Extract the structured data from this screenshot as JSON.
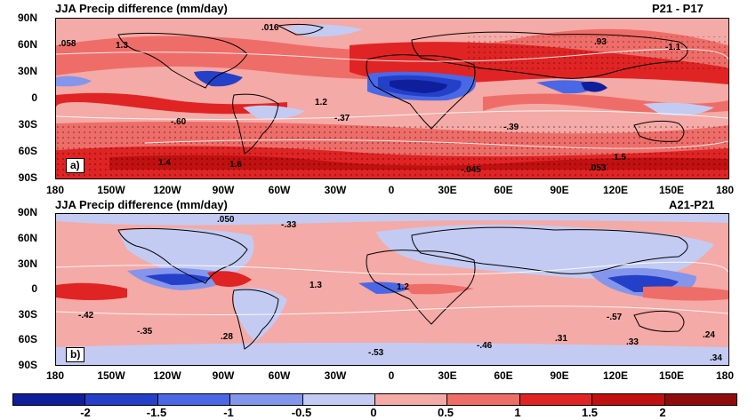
{
  "panels": [
    {
      "title": "JJA Precip difference (mm/day)",
      "right_title": "P21 - P17",
      "label": "a)",
      "annotations": [
        ".016",
        ".058",
        "1.3",
        ".93",
        "-.37",
        "-.60",
        "-.39",
        "1.4",
        "1.6",
        "1.5",
        "-.045",
        ".053",
        "1.2",
        "-1.1"
      ]
    },
    {
      "title": "JJA Precip difference (mm/day)",
      "right_title": "A21-P21",
      "label": "b)",
      "annotations": [
        ".050",
        "-.33",
        "-.42",
        "-.35",
        ".28",
        "1.3",
        "1.2",
        "-.46",
        ".31",
        ".33",
        ".24",
        "-.53",
        "-.57",
        ".34"
      ]
    }
  ],
  "lat_labels": [
    "90N",
    "60N",
    "30N",
    "0",
    "30S",
    "60S",
    "90S"
  ],
  "lon_labels": [
    "180",
    "150W",
    "120W",
    "90W",
    "60W",
    "30W",
    "0",
    "30E",
    "60E",
    "90E",
    "120E",
    "150E",
    "180"
  ],
  "colorbar": {
    "ticks": [
      "-2",
      "-1.5",
      "-1",
      "-0.5",
      "0",
      "0.5",
      "1",
      "1.5",
      "2"
    ],
    "colors": [
      "#0f1f9c",
      "#2540c8",
      "#4a68e6",
      "#8396ec",
      "#c3cbf2",
      "#f4aaa6",
      "#ef6d68",
      "#e02424",
      "#c01010",
      "#900c0c"
    ]
  }
}
